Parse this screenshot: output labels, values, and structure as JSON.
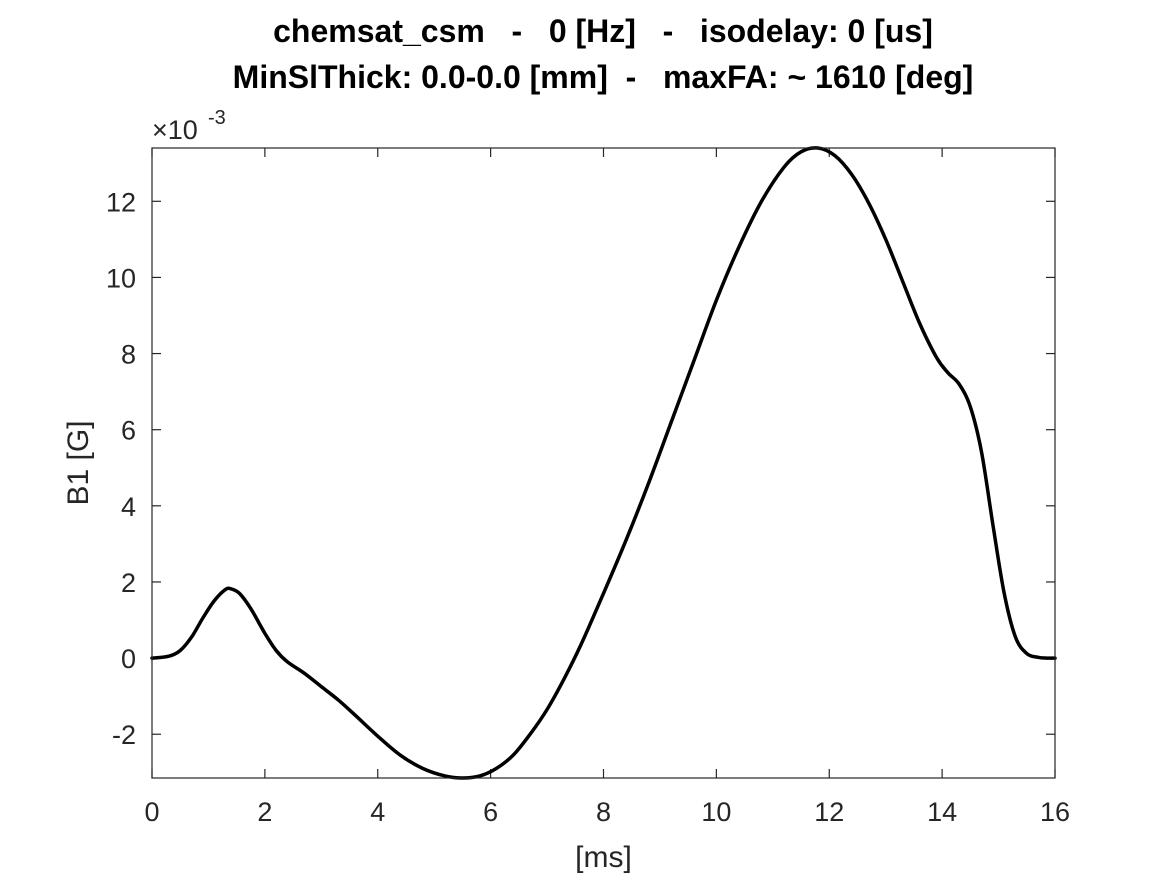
{
  "chart_data": {
    "type": "line",
    "title": "chemsat_csm   -   0 [Hz]   -   isodelay: 0 [us]",
    "subtitle": "MinSlThick: 0.0-0.0 [mm]  -   maxFA: ~ 1610 [deg]",
    "xlabel": "[ms]",
    "ylabel": "B1 [G]",
    "y_multiplier_mantissa": "×10",
    "y_multiplier_exponent": "-3",
    "xlim": [
      0,
      16
    ],
    "ylim": [
      -3.15,
      13.4
    ],
    "xticks": [
      0,
      2,
      4,
      6,
      8,
      10,
      12,
      14,
      16
    ],
    "yticks": [
      -2,
      0,
      2,
      4,
      6,
      8,
      10,
      12
    ],
    "grid": false,
    "colors": {
      "line": "#000000",
      "axis": "#262626"
    },
    "series": [
      {
        "x": [
          0,
          0.3,
          0.5,
          0.7,
          0.9,
          1.1,
          1.3,
          1.4,
          1.55,
          1.75,
          2.0,
          2.2,
          2.4,
          2.7,
          3.0,
          3.3,
          3.6,
          4.0,
          4.4,
          4.8,
          5.2,
          5.5,
          5.8,
          6.1,
          6.4,
          6.7,
          7.0,
          7.3,
          7.6,
          8.0,
          8.4,
          8.8,
          9.2,
          9.6,
          10.0,
          10.4,
          10.8,
          11.2,
          11.5,
          11.8,
          12.1,
          12.4,
          12.7,
          13.0,
          13.3,
          13.6,
          13.9,
          14.1,
          14.3,
          14.5,
          14.7,
          14.9,
          15.1,
          15.3,
          15.5,
          15.7,
          15.85,
          16.0
        ],
        "y": [
          0.0,
          0.05,
          0.2,
          0.55,
          1.05,
          1.5,
          1.8,
          1.82,
          1.7,
          1.3,
          0.65,
          0.2,
          -0.1,
          -0.4,
          -0.75,
          -1.1,
          -1.5,
          -2.05,
          -2.55,
          -2.9,
          -3.1,
          -3.15,
          -3.1,
          -2.9,
          -2.55,
          -2.0,
          -1.35,
          -0.55,
          0.35,
          1.7,
          3.1,
          4.6,
          6.2,
          7.8,
          9.4,
          10.8,
          12.0,
          12.9,
          13.3,
          13.4,
          13.2,
          12.7,
          11.95,
          11.0,
          9.9,
          8.8,
          7.9,
          7.5,
          7.2,
          6.6,
          5.4,
          3.5,
          1.7,
          0.55,
          0.12,
          0.02,
          0.0,
          0.0
        ]
      }
    ]
  }
}
